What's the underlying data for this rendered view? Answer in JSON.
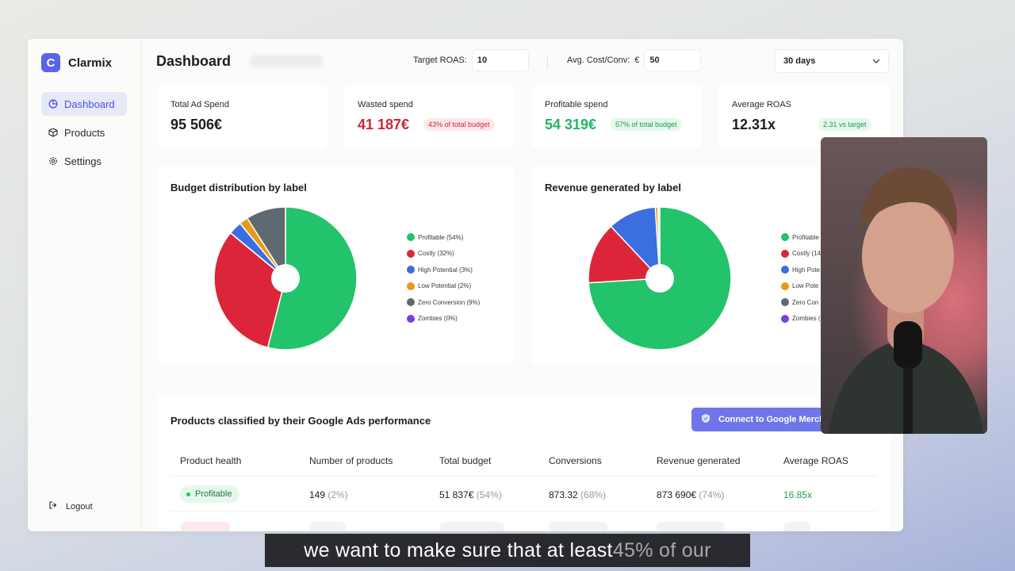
{
  "app": {
    "brand": "Clarmix",
    "brand_letter": "C"
  },
  "sidebar": {
    "items": [
      {
        "label": "Dashboard",
        "icon": "pie-icon"
      },
      {
        "label": "Products",
        "icon": "box-icon"
      },
      {
        "label": "Settings",
        "icon": "gear-icon"
      }
    ],
    "logout": "Logout"
  },
  "header": {
    "title": "Dashboard",
    "target_roas_label": "Target ROAS:",
    "target_roas_value": "10",
    "avg_cost_label": "Avg. Cost/Conv:",
    "avg_cost_currency": "€",
    "avg_cost_value": "50",
    "period": "30 days"
  },
  "kpis": [
    {
      "label": "Total Ad Spend",
      "value": "95 506€",
      "badge": ""
    },
    {
      "label": "Wasted spend",
      "value": "41 187€",
      "badge": "43% of total budget"
    },
    {
      "label": "Profitable spend",
      "value": "54 319€",
      "badge": "57% of total budget"
    },
    {
      "label": "Average ROAS",
      "value": "12.31x",
      "badge": "2.31 vs target"
    }
  ],
  "colors": {
    "profitable": "#22c36a",
    "costly": "#dc2539",
    "high_potential": "#3b6ee0",
    "low_potential": "#e69a16",
    "zero_conversion": "#606871",
    "zombies": "#7b3fe0",
    "accent": "#5b63e8"
  },
  "charts": [
    {
      "title": "Budget distribution by label",
      "legend": [
        "Profitable (54%)",
        "Costly (32%)",
        "High Potential (3%)",
        "Low Potential (2%)",
        "Zero Conversion (9%)",
        "Zombies (0%)"
      ]
    },
    {
      "title": "Revenue generated by label",
      "legend": [
        "Profitable",
        "Costly (14",
        "High Pote",
        "Low Pote",
        "Zero Con",
        "Zombies ("
      ]
    }
  ],
  "chart_data": [
    {
      "type": "pie",
      "title": "Budget distribution by label",
      "categories": [
        "Profitable",
        "Costly",
        "High Potential",
        "Low Potential",
        "Zero Conversion",
        "Zombies"
      ],
      "values": [
        54,
        32,
        3,
        2,
        9,
        0
      ]
    },
    {
      "type": "pie",
      "title": "Revenue generated by label",
      "categories": [
        "Profitable",
        "Costly",
        "High Potential",
        "Low Potential",
        "Zero Conversion",
        "Zombies"
      ],
      "values": [
        74,
        14,
        11,
        0.6,
        0.2,
        0.2
      ]
    }
  ],
  "table": {
    "title": "Products classified by their Google Ads performance",
    "connect_button": "Connect to Google Merch",
    "headers": [
      "Product health",
      "Number of products",
      "Total budget",
      "Conversions",
      "Revenue generated",
      "Average ROAS"
    ],
    "rows": [
      {
        "health": "Profitable",
        "products": "149",
        "products_pct": "(2%)",
        "budget": "51 837€",
        "budget_pct": "(54%)",
        "conversions": "873.32",
        "conversions_pct": "(68%)",
        "revenue": "873 690€",
        "revenue_pct": "(74%)",
        "roas": "16.85x"
      }
    ]
  },
  "subtitle": {
    "text": "we want to make sure that at least ",
    "dim": "45% of our"
  }
}
